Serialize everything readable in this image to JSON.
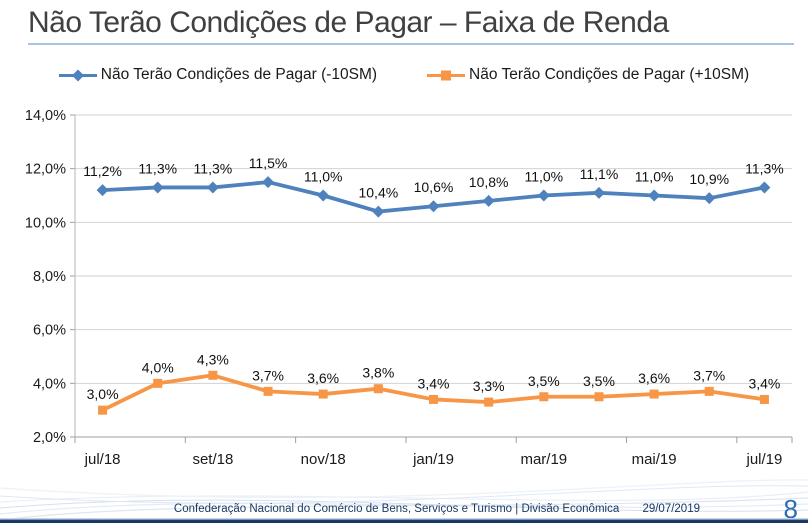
{
  "title": "Não Terão Condições de Pagar – Faixa de Renda",
  "footer": {
    "org_text": "Confederação Nacional do Comércio de Bens, Serviços e Turismo | Divisão Econômica",
    "date": "29/07/2019",
    "page_number": "8"
  },
  "colors": {
    "series_minus10sm": "#4F81BD",
    "series_plus10sm": "#F79646",
    "title_underline": "#a9c4e6",
    "gridline": "#d2d2d2",
    "axis": "#9aa0a6",
    "footer_text": "#17375E",
    "page_number": "#2c6cb0"
  },
  "chart_data": {
    "type": "line",
    "title": "Não Terão Condições de Pagar – Faixa de Renda",
    "x_count": 13,
    "x_tick_labels": [
      "jul/18",
      "set/18",
      "nov/18",
      "jan/19",
      "mar/19",
      "mai/19",
      "jul/19"
    ],
    "x_tick_positions": [
      0,
      2,
      4,
      6,
      8,
      10,
      12
    ],
    "y_ticks": [
      "14,0%",
      "12,0%",
      "10,0%",
      "8,0%",
      "6,0%",
      "4,0%",
      "2,0%"
    ],
    "y_tick_values": [
      14,
      12,
      10,
      8,
      6,
      4,
      2
    ],
    "ylim": [
      2,
      14
    ],
    "grid": "horizontal",
    "legend_position": "top",
    "series": [
      {
        "name": "Não Terão Condições de Pagar (-10SM)",
        "color": "#4F81BD",
        "marker": "diamond",
        "values": [
          11.2,
          11.3,
          11.3,
          11.5,
          11.0,
          10.4,
          10.6,
          10.8,
          11.0,
          11.1,
          11.0,
          10.9,
          11.3
        ],
        "labels": [
          "11,2%",
          "11,3%",
          "11,3%",
          "11,5%",
          "11,0%",
          "10,4%",
          "10,6%",
          "10,8%",
          "11,0%",
          "11,1%",
          "11,0%",
          "10,9%",
          "11,3%"
        ]
      },
      {
        "name": "Não Terão Condições de Pagar (+10SM)",
        "color": "#F79646",
        "marker": "square",
        "values": [
          3.0,
          4.0,
          4.3,
          3.7,
          3.6,
          3.8,
          3.4,
          3.3,
          3.5,
          3.5,
          3.6,
          3.7,
          3.4
        ],
        "labels": [
          "3,0%",
          "4,0%",
          "4,3%",
          "3,7%",
          "3,6%",
          "3,8%",
          "3,4%",
          "3,3%",
          "3,5%",
          "3,5%",
          "3,6%",
          "3,7%",
          "3,4%"
        ]
      }
    ]
  }
}
